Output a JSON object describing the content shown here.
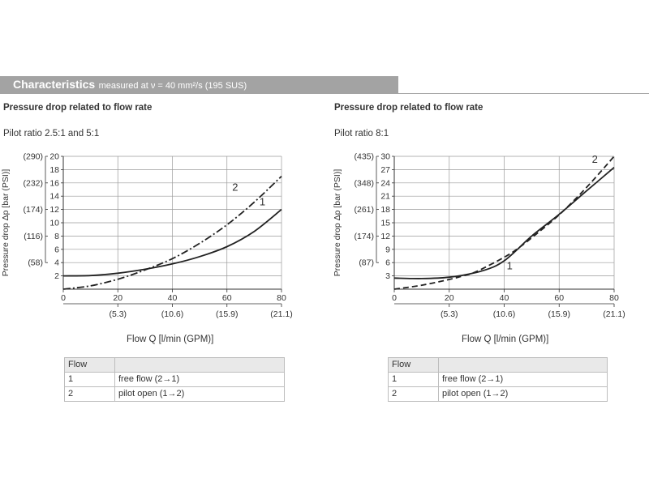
{
  "header": {
    "title": "Characteristics",
    "subtitle": "measured at ν = 40 mm²/s (195 SUS)"
  },
  "colors": {
    "header_bg": "#a3a3a3",
    "header_text": "#ffffff",
    "grid": "#9a9a9a",
    "curve": "#222222",
    "table_header_bg": "#e9e9e9"
  },
  "left": {
    "subtitle": "Pressure drop related to flow rate",
    "ratio": "Pilot ratio 2.5:1  and  5:1",
    "flow_label": "Flow Q [l/min (GPM)]",
    "table": {
      "header": [
        "Flow",
        ""
      ],
      "rows": [
        [
          "1",
          "free flow (2→1)"
        ],
        [
          "2",
          "pilot open (1→2)"
        ]
      ]
    }
  },
  "right": {
    "subtitle": "Pressure drop related to flow rate",
    "ratio": "Pilot ratio 8:1",
    "flow_label": "Flow Q [l/min (GPM)]",
    "table": {
      "header": [
        "Flow",
        ""
      ],
      "rows": [
        [
          "1",
          "free flow (2→1)"
        ],
        [
          "2",
          "pilot open (1→2)"
        ]
      ]
    }
  },
  "chart_data": [
    {
      "type": "line",
      "title": "Pressure drop related to flow rate — Pilot ratio 2.5:1 and 5:1",
      "xlabel": "Flow Q [l/min (GPM)]",
      "ylabel": "Pressure drop Δp [bar (PSI)]",
      "xlim": [
        0,
        80
      ],
      "ylim": [
        0,
        20
      ],
      "x_ticks": [
        {
          "value": 0,
          "label": "0"
        },
        {
          "value": 20,
          "label": "20",
          "gpm": "(5.3)"
        },
        {
          "value": 40,
          "label": "40",
          "gpm": "(10.6)"
        },
        {
          "value": 60,
          "label": "60",
          "gpm": "(15.9)"
        },
        {
          "value": 80,
          "label": "80",
          "gpm": "(21.1)"
        }
      ],
      "y_ticks": [
        {
          "value": 2,
          "label": "2"
        },
        {
          "value": 4,
          "label": "4",
          "psi": "(58)"
        },
        {
          "value": 6,
          "label": "6"
        },
        {
          "value": 8,
          "label": "8",
          "psi": "(116)"
        },
        {
          "value": 10,
          "label": "10"
        },
        {
          "value": 12,
          "label": "12",
          "psi": "(174)"
        },
        {
          "value": 14,
          "label": "14"
        },
        {
          "value": 16,
          "label": "16",
          "psi": "(232)"
        },
        {
          "value": 18,
          "label": "18"
        },
        {
          "value": 20,
          "label": "20",
          "psi": "(290)"
        }
      ],
      "series": [
        {
          "name": "1",
          "style": "solid",
          "label_at": [
            73,
            12.6
          ],
          "x": [
            0,
            10,
            20,
            30,
            40,
            50,
            60,
            70,
            80
          ],
          "y": [
            2.0,
            2.05,
            2.4,
            3.0,
            3.8,
            4.9,
            6.4,
            8.7,
            12.0
          ]
        },
        {
          "name": "2",
          "style": "dashdot",
          "label_at": [
            63,
            14.8
          ],
          "x": [
            0,
            10,
            20,
            30,
            40,
            50,
            60,
            70,
            80
          ],
          "y": [
            0,
            0.5,
            1.5,
            2.9,
            4.6,
            6.9,
            9.7,
            13.1,
            17.0
          ]
        }
      ]
    },
    {
      "type": "line",
      "title": "Pressure drop related to flow rate — Pilot ratio 8:1",
      "xlabel": "Flow Q [l/min (GPM)]",
      "ylabel": "Pressure drop Δp [bar (PSI)]",
      "xlim": [
        0,
        80
      ],
      "ylim": [
        0,
        30
      ],
      "x_ticks": [
        {
          "value": 0,
          "label": "0"
        },
        {
          "value": 20,
          "label": "20",
          "gpm": "(5.3)"
        },
        {
          "value": 40,
          "label": "40",
          "gpm": "(10.6)"
        },
        {
          "value": 60,
          "label": "60",
          "gpm": "(15.9)"
        },
        {
          "value": 80,
          "label": "80",
          "gpm": "(21.1)"
        }
      ],
      "y_ticks": [
        {
          "value": 3,
          "label": "3"
        },
        {
          "value": 6,
          "label": "6",
          "psi": "(87)"
        },
        {
          "value": 9,
          "label": "9"
        },
        {
          "value": 12,
          "label": "12",
          "psi": "(174)"
        },
        {
          "value": 15,
          "label": "15"
        },
        {
          "value": 18,
          "label": "18",
          "psi": "(261)"
        },
        {
          "value": 21,
          "label": "21"
        },
        {
          "value": 24,
          "label": "24",
          "psi": "(348)"
        },
        {
          "value": 27,
          "label": "27"
        },
        {
          "value": 30,
          "label": "30",
          "psi": "(435)"
        }
      ],
      "series": [
        {
          "name": "1",
          "style": "solid",
          "label_at": [
            42,
            4.5
          ],
          "x": [
            0,
            10,
            20,
            30,
            36,
            40,
            44,
            50,
            60,
            70,
            80
          ],
          "y": [
            2.5,
            2.4,
            2.7,
            3.8,
            5.0,
            6.4,
            8.5,
            12.0,
            16.9,
            22.2,
            27.5
          ]
        },
        {
          "name": "2",
          "style": "dashed",
          "label_at": [
            73,
            28.5
          ],
          "x": [
            0,
            10,
            20,
            25,
            30,
            40,
            45,
            50,
            60,
            70,
            80
          ],
          "y": [
            0,
            0.9,
            2.2,
            3.0,
            4.0,
            7.2,
            9.2,
            11.6,
            16.8,
            23.0,
            30.0
          ]
        }
      ]
    }
  ]
}
